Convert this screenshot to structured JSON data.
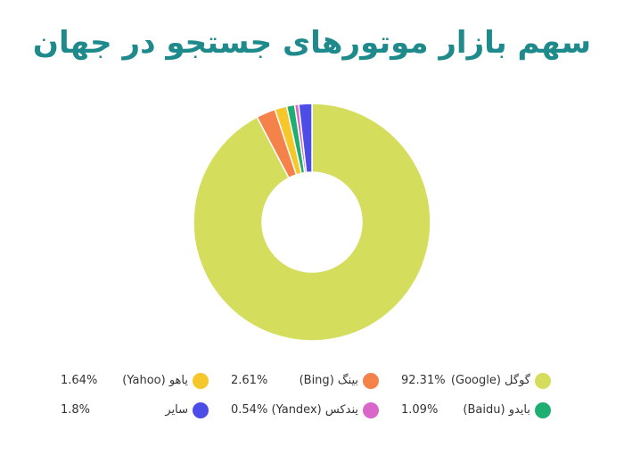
{
  "chart_data": {
    "type": "pie",
    "title": "سهم بازار موتورهای جستجو در جهان",
    "slices": [
      {
        "label": "گوگل (Google)",
        "value": 92.31,
        "value_label": "92.31%",
        "color": "#d4dd5c"
      },
      {
        "label": "بینگ (Bing)",
        "value": 2.61,
        "value_label": "2.61%",
        "color": "#f4824a"
      },
      {
        "label": "یاهو (Yahoo)",
        "value": 1.64,
        "value_label": "1.64%",
        "color": "#f5c72a"
      },
      {
        "label": "بایدو (Baidu)",
        "value": 1.09,
        "value_label": "1.09%",
        "color": "#1fae72"
      },
      {
        "label": "یندکس (Yandex)",
        "value": 0.54,
        "value_label": "0.54%",
        "color": "#d966c8"
      },
      {
        "label": "سایر",
        "value": 1.8,
        "value_label": "1.8%",
        "color": "#4b4de6"
      }
    ],
    "legend_position": "bottom"
  }
}
